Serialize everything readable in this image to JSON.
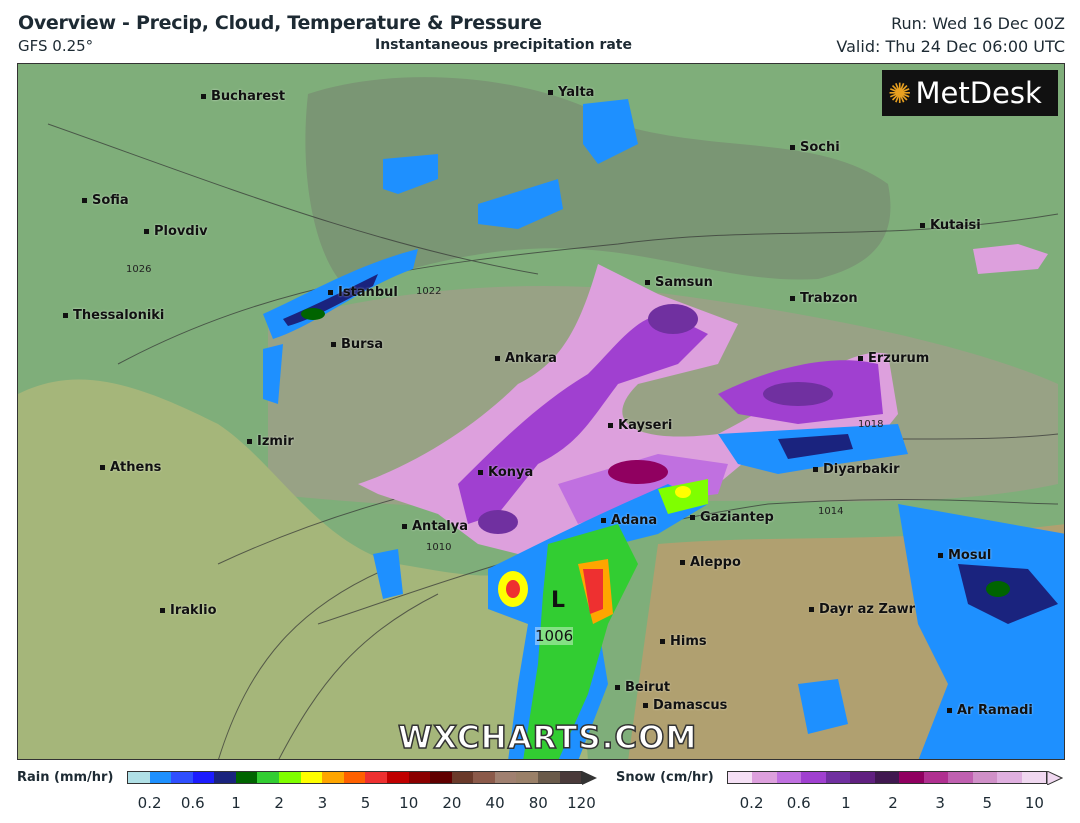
{
  "header": {
    "title": "Overview - Precip, Cloud, Temperature & Pressure",
    "model": "GFS 0.25°",
    "subtitle": "Instantaneous precipitation rate",
    "run": "Run: Wed 16 Dec 00Z",
    "valid": "Valid: Thu 24 Dec 06:00 UTC"
  },
  "logo": "MetDesk",
  "watermark": "WXCHARTS.COM",
  "pressure_low": {
    "symbol": "L",
    "value": "1006"
  },
  "isobar_labels": [
    "1026",
    "1022",
    "1018",
    "1014",
    "1010"
  ],
  "cities": [
    "Bucharest",
    "Yalta",
    "Sochi",
    "Sofia",
    "Plovdiv",
    "Kutaisi",
    "Samsun",
    "Istanbul",
    "Trabzon",
    "Thessaloniki",
    "Bursa",
    "Ankara",
    "Erzurum",
    "Kayseri",
    "Izmir",
    "Athens",
    "Konya",
    "Diyarbakir",
    "Adana",
    "Gaziantep",
    "Antalya",
    "Mosul",
    "Aleppo",
    "Dayr az Zawr",
    "Iraklio",
    "Hims",
    "Beirut",
    "Damascus",
    "Ar Ramadi"
  ],
  "legend": {
    "rain": {
      "label": "Rain (mm/hr)",
      "ticks": [
        "0.2",
        "0.6",
        "1",
        "2",
        "3",
        "5",
        "10",
        "20",
        "40",
        "80",
        "120"
      ],
      "colors": [
        "#b0e0e6",
        "#1e90ff",
        "#2f4fff",
        "#1c1cff",
        "#1a237e",
        "#006400",
        "#32cd32",
        "#7fff00",
        "#ffff00",
        "#ffa500",
        "#ff6000",
        "#ee3030",
        "#c00000",
        "#8b0000",
        "#600000",
        "#6a3a2a",
        "#8b5a4a",
        "#a08070",
        "#9a8068",
        "#6a5a4a",
        "#4a3a3a"
      ]
    },
    "snow": {
      "label": "Snow (cm/hr)",
      "ticks": [
        "0.2",
        "0.6",
        "1",
        "2",
        "3",
        "5",
        "10"
      ],
      "colors": [
        "#f5e0f5",
        "#dda0dd",
        "#c070e0",
        "#a040d0",
        "#7030a0",
        "#602080",
        "#401850",
        "#900060",
        "#b03090",
        "#c060b0",
        "#d090c8",
        "#e0b0e0",
        "#f0d8f0"
      ]
    }
  },
  "colors": {
    "land": "#7fae7a",
    "highland": "#a8a880",
    "sea": "#7a9a7a"
  }
}
